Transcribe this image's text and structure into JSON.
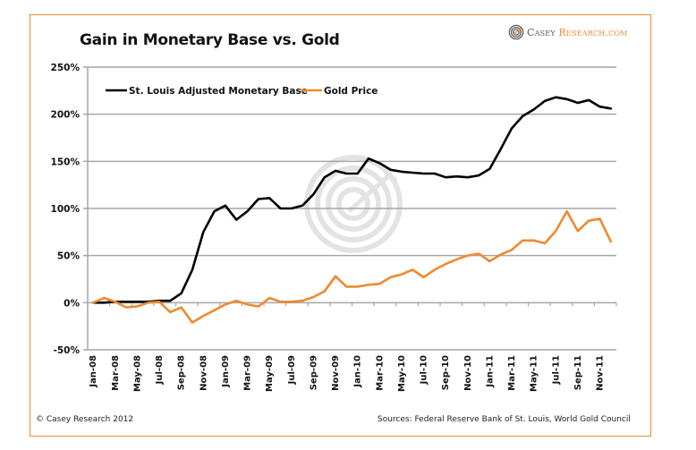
{
  "chart_data": {
    "type": "line",
    "title": "Gain in Monetary Base vs. Gold",
    "xlabel": "",
    "ylabel": "",
    "ylim": [
      -50,
      250
    ],
    "yticks": [
      -50,
      0,
      50,
      100,
      150,
      200,
      250
    ],
    "ytick_labels": [
      "-50%",
      "0%",
      "50%",
      "100%",
      "150%",
      "200%",
      "250%"
    ],
    "grid": true,
    "legend_position": "top-left",
    "x": [
      "Jan-08",
      "Feb-08",
      "Mar-08",
      "Apr-08",
      "May-08",
      "Jun-08",
      "Jul-08",
      "Aug-08",
      "Sep-08",
      "Oct-08",
      "Nov-08",
      "Dec-08",
      "Jan-09",
      "Feb-09",
      "Mar-09",
      "Apr-09",
      "May-09",
      "Jun-09",
      "Jul-09",
      "Aug-09",
      "Sep-09",
      "Oct-09",
      "Nov-09",
      "Dec-09",
      "Jan-10",
      "Feb-10",
      "Mar-10",
      "Apr-10",
      "May-10",
      "Jun-10",
      "Jul-10",
      "Aug-10",
      "Sep-10",
      "Oct-10",
      "Nov-10",
      "Dec-10",
      "Jan-11",
      "Feb-11",
      "Mar-11",
      "Apr-11",
      "May-11",
      "Jun-11",
      "Jul-11",
      "Aug-11",
      "Sep-11",
      "Oct-11",
      "Nov-11",
      "Dec-11"
    ],
    "xtick_labels": [
      "Jan-08",
      "Mar-08",
      "May-08",
      "Jul-08",
      "Sep-08",
      "Nov-08",
      "Jan-09",
      "Mar-09",
      "May-09",
      "Jul-09",
      "Sep-09",
      "Nov-09",
      "Jan-10",
      "Mar-10",
      "May-10",
      "Jul-10",
      "Sep-10",
      "Nov-10",
      "Jan-11",
      "Mar-11",
      "May-11",
      "Jul-11",
      "Sep-11",
      "Nov-11"
    ],
    "series": [
      {
        "name": "St. Louis Adjusted Monetary Base",
        "color": "#000000",
        "values": [
          0,
          0,
          1,
          1,
          1,
          1,
          2,
          2,
          10,
          35,
          75,
          97,
          103,
          88,
          97,
          110,
          111,
          100,
          100,
          103,
          115,
          133,
          140,
          137,
          137,
          153,
          148,
          141,
          139,
          138,
          137,
          137,
          133,
          134,
          133,
          135,
          142,
          163,
          185,
          198,
          205,
          214,
          218,
          216,
          212,
          215,
          208,
          206
        ]
      },
      {
        "name": "Gold Price",
        "color": "#ee8a2e",
        "values": [
          0,
          5,
          1,
          -5,
          -4,
          0,
          1,
          -10,
          -5,
          -21,
          -14,
          -8,
          -2,
          2,
          -2,
          -4,
          5,
          1,
          1,
          2,
          6,
          12,
          28,
          17,
          17,
          19,
          20,
          27,
          30,
          35,
          27,
          35,
          41,
          46,
          50,
          52,
          44,
          51,
          56,
          66,
          66,
          63,
          76,
          97,
          76,
          87,
          89,
          65
        ]
      }
    ]
  },
  "branding": {
    "casey": "Casey",
    "research": "Research.com"
  },
  "footer": {
    "copyright": "© Casey Research 2012",
    "sources": "Sources: Federal Reserve Bank of St. Louis, World Gold Council"
  },
  "colors": {
    "accent": "#ee8a2e",
    "grid": "#a6a6a6",
    "watermark": "#e3e3e3"
  }
}
